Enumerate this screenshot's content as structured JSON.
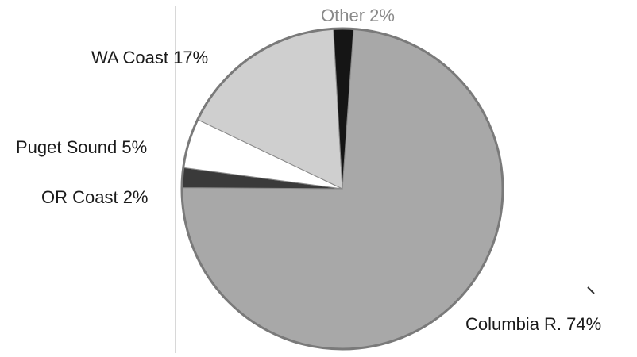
{
  "chart_data": {
    "type": "pie",
    "title": "",
    "slices": [
      {
        "label": "Columbia R.",
        "percent_text": "74%",
        "value": 74,
        "color": "#a8a8a8"
      },
      {
        "label": "OR Coast",
        "percent_text": "2%",
        "value": 2,
        "color": "#3a3a3a"
      },
      {
        "label": "Puget Sound",
        "percent_text": "5%",
        "value": 5,
        "color": "#ffffff"
      },
      {
        "label": "WA Coast",
        "percent_text": "17%",
        "value": 17,
        "color": "#cfcfcf"
      },
      {
        "label": "Other",
        "percent_text": "2%",
        "value": 2,
        "color": "#151515"
      }
    ],
    "labels": {
      "columbia": "Columbia R.  74%",
      "or_coast": "OR Coast  2%",
      "puget": "Puget Sound 5%",
      "wa_coast": "WA Coast 17%",
      "other": "Other  2%"
    }
  }
}
